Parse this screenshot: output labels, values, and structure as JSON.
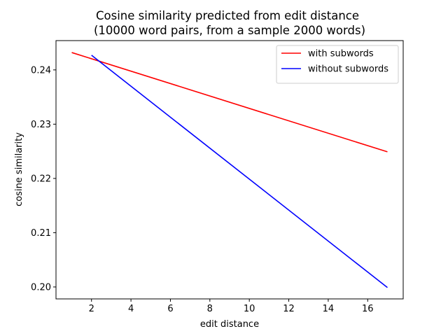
{
  "chart_data": {
    "type": "line",
    "title": "Cosine similarity predicted from edit distance",
    "subtitle": "(10000 word pairs, from a sample 2000 words)",
    "xlabel": "edit distance",
    "ylabel": "cosine similarity",
    "xlim": [
      0.2,
      17.8
    ],
    "ylim": [
      0.1978,
      0.2454
    ],
    "xticks": [
      2,
      4,
      6,
      8,
      10,
      12,
      14,
      16
    ],
    "yticks": [
      0.2,
      0.21,
      0.22,
      0.23,
      0.24
    ],
    "ytick_labels": [
      "0.20",
      "0.21",
      "0.22",
      "0.23",
      "0.24"
    ],
    "grid": false,
    "legend_position": "top-right",
    "series": [
      {
        "name": "with subwords",
        "color": "#ff0000",
        "x": [
          1,
          17
        ],
        "y": [
          0.2432,
          0.2249
        ]
      },
      {
        "name": "without subwords",
        "color": "#0000ff",
        "x": [
          2,
          17
        ],
        "y": [
          0.2427,
          0.1999
        ]
      }
    ]
  }
}
